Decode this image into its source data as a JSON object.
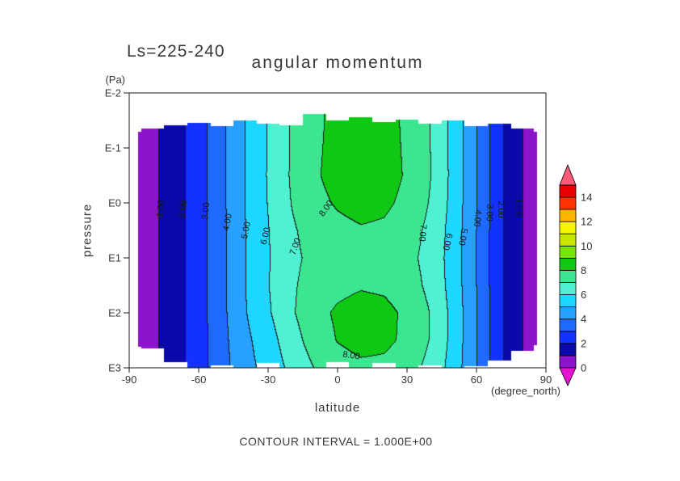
{
  "header": {
    "ls_label": "Ls=225-240",
    "title": "angular momentum"
  },
  "caption": "CONTOUR INTERVAL = 1.000E+00",
  "axes": {
    "y": {
      "label": "pressure",
      "unit": "(Pa)",
      "ticks": [
        {
          "label": "E-2",
          "z": -2
        },
        {
          "label": "E-1",
          "z": -1
        },
        {
          "label": "E0",
          "z": 0
        },
        {
          "label": "E1",
          "z": 1
        },
        {
          "label": "E2",
          "z": 2
        },
        {
          "label": "E3",
          "z": 3
        }
      ]
    },
    "x": {
      "label": "latitude",
      "unit": "(degree_north)",
      "ticks": [
        {
          "label": "-90",
          "lat": -90
        },
        {
          "label": "-60",
          "lat": -60
        },
        {
          "label": "-30",
          "lat": -30
        },
        {
          "label": "0",
          "lat": 0
        },
        {
          "label": "30",
          "lat": 30
        },
        {
          "label": "60",
          "lat": 60
        },
        {
          "label": "90",
          "lat": 90
        }
      ]
    }
  },
  "chart_data": {
    "type": "heatmap",
    "subtype": "filled_contour",
    "title": "angular momentum",
    "annotation": "Ls=225-240",
    "contour_interval": 1.0,
    "xlabel": "latitude (degree_north)",
    "ylabel": "pressure (Pa), log scale E-2 to E3",
    "xlim": [
      -90,
      90
    ],
    "ylim_log10_pa": [
      -2,
      3
    ],
    "lats": [
      -90,
      -80,
      -70,
      -60,
      -50,
      -40,
      -30,
      -20,
      -10,
      0,
      10,
      20,
      30,
      40,
      50,
      60,
      70,
      80,
      90
    ],
    "levels_log10_pa": [
      -2,
      -1.5,
      -1,
      -0.5,
      0,
      0.5,
      1,
      1.5,
      2,
      2.5,
      3
    ],
    "values": [
      [
        0.3,
        0.8,
        1.6,
        2.6,
        3.81,
        5.03,
        6.08,
        7.08,
        7.82,
        8.25,
        8.5,
        8.35,
        7.82,
        6.98,
        5.68,
        4.03,
        2.21,
        1.0,
        0.4
      ],
      [
        0.3,
        0.8,
        1.6,
        2.6,
        3.81,
        5.03,
        6.08,
        7.08,
        7.82,
        8.25,
        8.5,
        8.35,
        7.82,
        6.98,
        5.68,
        4.03,
        2.21,
        1.0,
        0.4
      ],
      [
        0.3,
        0.8,
        1.6,
        2.6,
        3.81,
        5.03,
        6.09,
        7.1,
        7.85,
        8.29,
        8.55,
        8.39,
        7.85,
        7.0,
        5.69,
        4.03,
        2.21,
        1.0,
        0.4
      ],
      [
        0.3,
        0.8,
        1.6,
        2.6,
        3.81,
        5.04,
        6.1,
        7.12,
        7.88,
        8.34,
        8.6,
        8.44,
        7.88,
        7.02,
        5.7,
        4.04,
        2.21,
        1.0,
        0.4
      ],
      [
        0.3,
        0.8,
        1.6,
        2.6,
        3.81,
        5.02,
        6.06,
        7.03,
        7.72,
        8.11,
        8.35,
        8.21,
        7.72,
        6.93,
        5.66,
        4.02,
        2.21,
        1.0,
        0.4
      ],
      [
        0.3,
        0.8,
        1.6,
        2.6,
        3.8,
        4.99,
        5.98,
        6.86,
        7.44,
        7.71,
        7.9,
        7.81,
        7.44,
        6.76,
        5.58,
        3.99,
        2.2,
        1.0,
        0.4
      ],
      [
        0.3,
        0.8,
        1.6,
        2.6,
        3.79,
        4.98,
        5.94,
        6.77,
        7.28,
        7.49,
        7.65,
        7.59,
        7.28,
        6.67,
        5.54,
        3.98,
        2.19,
        1.0,
        0.4
      ],
      [
        0.3,
        0.8,
        1.6,
        2.6,
        3.8,
        4.99,
        5.98,
        6.86,
        7.44,
        7.71,
        7.9,
        7.81,
        7.44,
        6.76,
        5.58,
        3.99,
        2.2,
        1.0,
        0.4
      ],
      [
        0.3,
        0.8,
        1.6,
        2.59,
        3.77,
        4.95,
        5.89,
        6.88,
        7.67,
        8.16,
        8.44,
        8.3,
        7.79,
        6.97,
        5.68,
        4.03,
        2.21,
        1.0,
        0.4
      ],
      [
        0.3,
        0.8,
        1.6,
        2.58,
        3.72,
        4.77,
        5.6,
        6.58,
        7.47,
        8.05,
        8.38,
        8.26,
        7.76,
        6.95,
        5.67,
        4.02,
        2.21,
        1.0,
        0.4
      ],
      [
        0.3,
        0.8,
        1.6,
        2.57,
        3.67,
        4.64,
        5.4,
        6.26,
        7.03,
        7.5,
        7.77,
        7.72,
        7.37,
        6.73,
        5.57,
        3.99,
        2.19,
        1.0,
        0.4
      ]
    ],
    "top_edge": [
      -1.3,
      -1.36,
      -1.42,
      -1.46,
      -1.4,
      -1.5,
      -1.44,
      -1.42,
      -1.62,
      -1.5,
      -1.56,
      -1.48,
      -1.52,
      -1.44,
      -1.5,
      -1.4,
      -1.44,
      -1.36,
      -1.3
    ],
    "bottom_edge": [
      2.62,
      2.66,
      2.9,
      3.0,
      2.96,
      3.0,
      2.92,
      3.0,
      3.0,
      2.9,
      3.0,
      2.92,
      3.0,
      2.96,
      3.0,
      2.98,
      2.88,
      2.7,
      2.6
    ],
    "lat_data_limit": 86.5,
    "band_colors": [
      "#8c14cd",
      "#0a0aaa",
      "#1432ff",
      "#1e69ff",
      "#28a0ff",
      "#1ed7ff",
      "#50f0d2",
      "#3ce691",
      "#0fc814",
      "#78e600",
      "#c8e600",
      "#f5f500",
      "#ffb400",
      "#ff3200"
    ],
    "over_band_color": "#e60000",
    "over_arrow_color": "#ff5a78",
    "under_arrow_color": "#e614d2",
    "line_color": "#1a1a1a",
    "colorbar_ticks": [
      0,
      2,
      4,
      6,
      8,
      10,
      12,
      14
    ],
    "legend_position": "right",
    "grid": false,
    "contour_labels": [
      {
        "text": "1.00",
        "lat": -76.5,
        "z": 0.1,
        "rot": -84
      },
      {
        "text": "2.00",
        "lat": -66.5,
        "z": 0.1,
        "rot": -84
      },
      {
        "text": "3.00",
        "lat": -57,
        "z": 0.15,
        "rot": -84
      },
      {
        "text": "4.00",
        "lat": -47.5,
        "z": 0.35,
        "rot": -80
      },
      {
        "text": "5.00",
        "lat": -39.5,
        "z": 0.5,
        "rot": -78
      },
      {
        "text": "6.00",
        "lat": -31,
        "z": 0.6,
        "rot": -76
      },
      {
        "text": "7.00",
        "lat": -18,
        "z": 0.8,
        "rot": -70
      },
      {
        "text": "8.00",
        "lat": -5,
        "z": 0.1,
        "rot": -55
      },
      {
        "text": "7.00",
        "lat": 36.5,
        "z": 0.55,
        "rot": 95
      },
      {
        "text": "6.00",
        "lat": 47.5,
        "z": 0.7,
        "rot": 103
      },
      {
        "text": "5.00",
        "lat": 54,
        "z": 0.62,
        "rot": 100
      },
      {
        "text": "4.00",
        "lat": 60.5,
        "z": 0.28,
        "rot": 95
      },
      {
        "text": "3.00",
        "lat": 65.5,
        "z": 0.18,
        "rot": 93
      },
      {
        "text": "2.00",
        "lat": 70.5,
        "z": 0.12,
        "rot": 91
      },
      {
        "text": "1.00",
        "lat": 78,
        "z": 0.08,
        "rot": 89
      },
      {
        "text": "8.00",
        "lat": 6,
        "z": 2.78,
        "rot": 8
      }
    ]
  }
}
